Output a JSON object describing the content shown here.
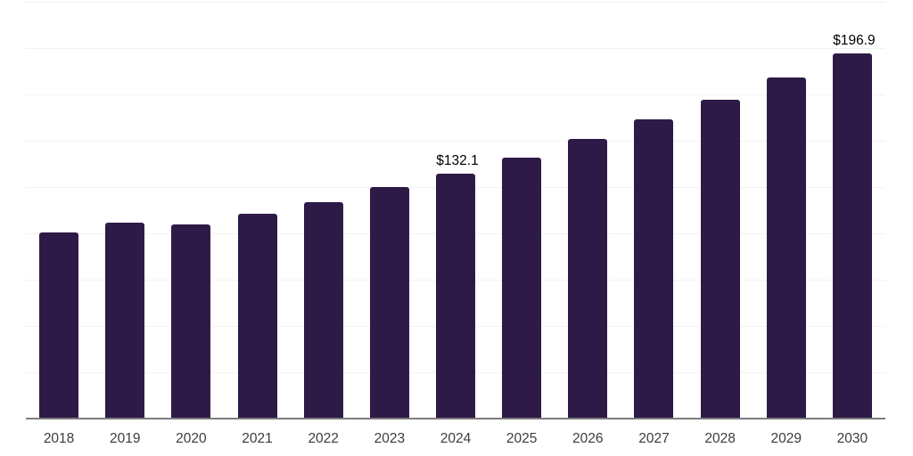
{
  "chart_data": {
    "type": "bar",
    "title": "",
    "xlabel": "",
    "ylabel": "",
    "categories": [
      "2018",
      "2019",
      "2020",
      "2021",
      "2022",
      "2023",
      "2024",
      "2025",
      "2026",
      "2027",
      "2028",
      "2029",
      "2030"
    ],
    "values": [
      100.5,
      106.0,
      104.8,
      110.4,
      116.9,
      124.9,
      132.1,
      141.1,
      150.8,
      161.3,
      172.0,
      184.0,
      196.9
    ],
    "data_labels": {
      "2024": "$132.1",
      "2030": "$196.9"
    },
    "ylim": [
      0,
      225
    ],
    "gridline_step": 25,
    "grid": true,
    "legend_position": "none",
    "colors": {
      "bar": "#2e1a47",
      "gridline": "#f2f2f2",
      "axis_line": "#7d7d7d",
      "tick_label": "#3c3c3c",
      "data_label": "#000000",
      "background": "#ffffff"
    }
  }
}
